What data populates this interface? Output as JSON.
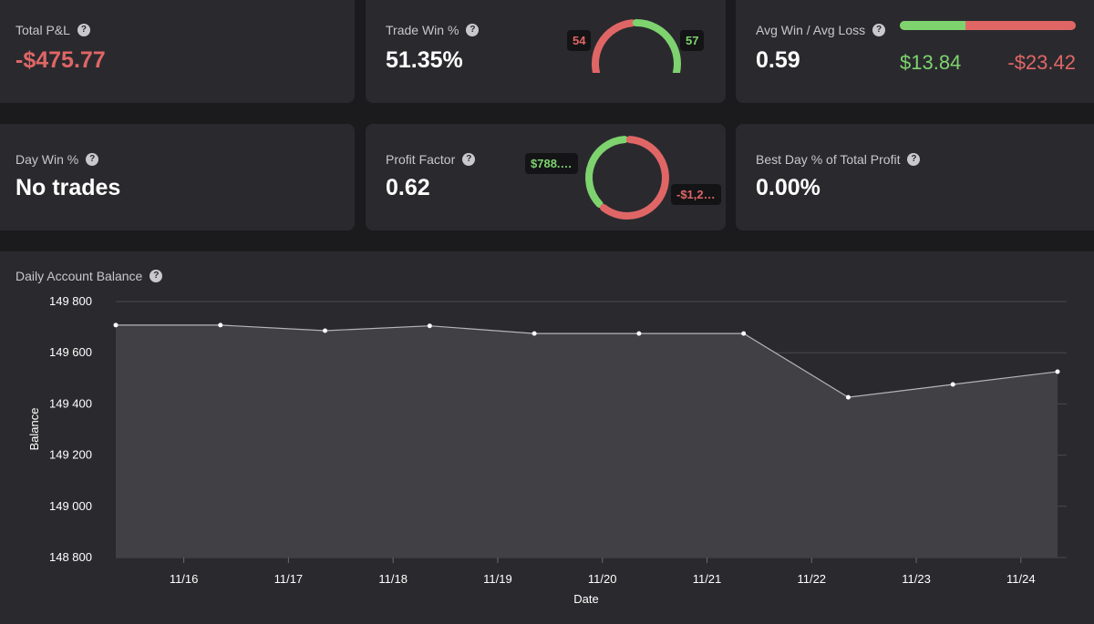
{
  "total_pnl": {
    "label": "Total P&L",
    "value": "-$475.77"
  },
  "trade_win": {
    "label": "Trade Win %",
    "value": "51.35%",
    "losses": "54",
    "wins": "57",
    "win_count": 57,
    "loss_count": 54
  },
  "avg_win_loss": {
    "label": "Avg Win / Avg Loss",
    "value": "0.59",
    "avg_win": "$13.84",
    "avg_loss": "-$23.42",
    "win_amount": 13.84,
    "loss_amount": 23.42
  },
  "day_win": {
    "label": "Day Win %",
    "value": "No trades"
  },
  "profit_factor": {
    "label": "Profit Factor",
    "value": "0.62",
    "gross_profit": "$788.…",
    "gross_loss": "-$1,2…",
    "profit_amount": 788,
    "loss_amount": 1270
  },
  "best_day": {
    "label": "Best Day % of Total Profit",
    "value": "0.00%"
  },
  "help_glyph": "?",
  "colors": {
    "green": "#7ed36f",
    "red": "#e06666",
    "card": "#2a2a2e",
    "background": "#1b1b1e"
  },
  "chart_data": {
    "type": "area",
    "title": "Daily Account Balance",
    "xlabel": "Date",
    "ylabel": "Balance",
    "x_tick_labels": [
      "11/16",
      "11/17",
      "11/18",
      "11/19",
      "11/20",
      "11/21",
      "11/22",
      "11/23",
      "11/24"
    ],
    "y_tick_labels": [
      "149 800",
      "149 600",
      "149 400",
      "149 200",
      "149 000",
      "148 800"
    ],
    "y_ticks": [
      149800,
      149600,
      149400,
      149200,
      149000,
      148800
    ],
    "ylim": [
      148800,
      149800
    ],
    "x_range": [
      -0.65,
      8.35
    ],
    "x": [
      -0.65,
      0.35,
      1.35,
      2.35,
      3.35,
      4.35,
      5.35,
      6.35,
      7.35,
      8.35
    ],
    "values": [
      149708,
      149708,
      149686,
      149705,
      149675,
      149675,
      149675,
      149426,
      149476,
      149526
    ],
    "grid": true
  }
}
